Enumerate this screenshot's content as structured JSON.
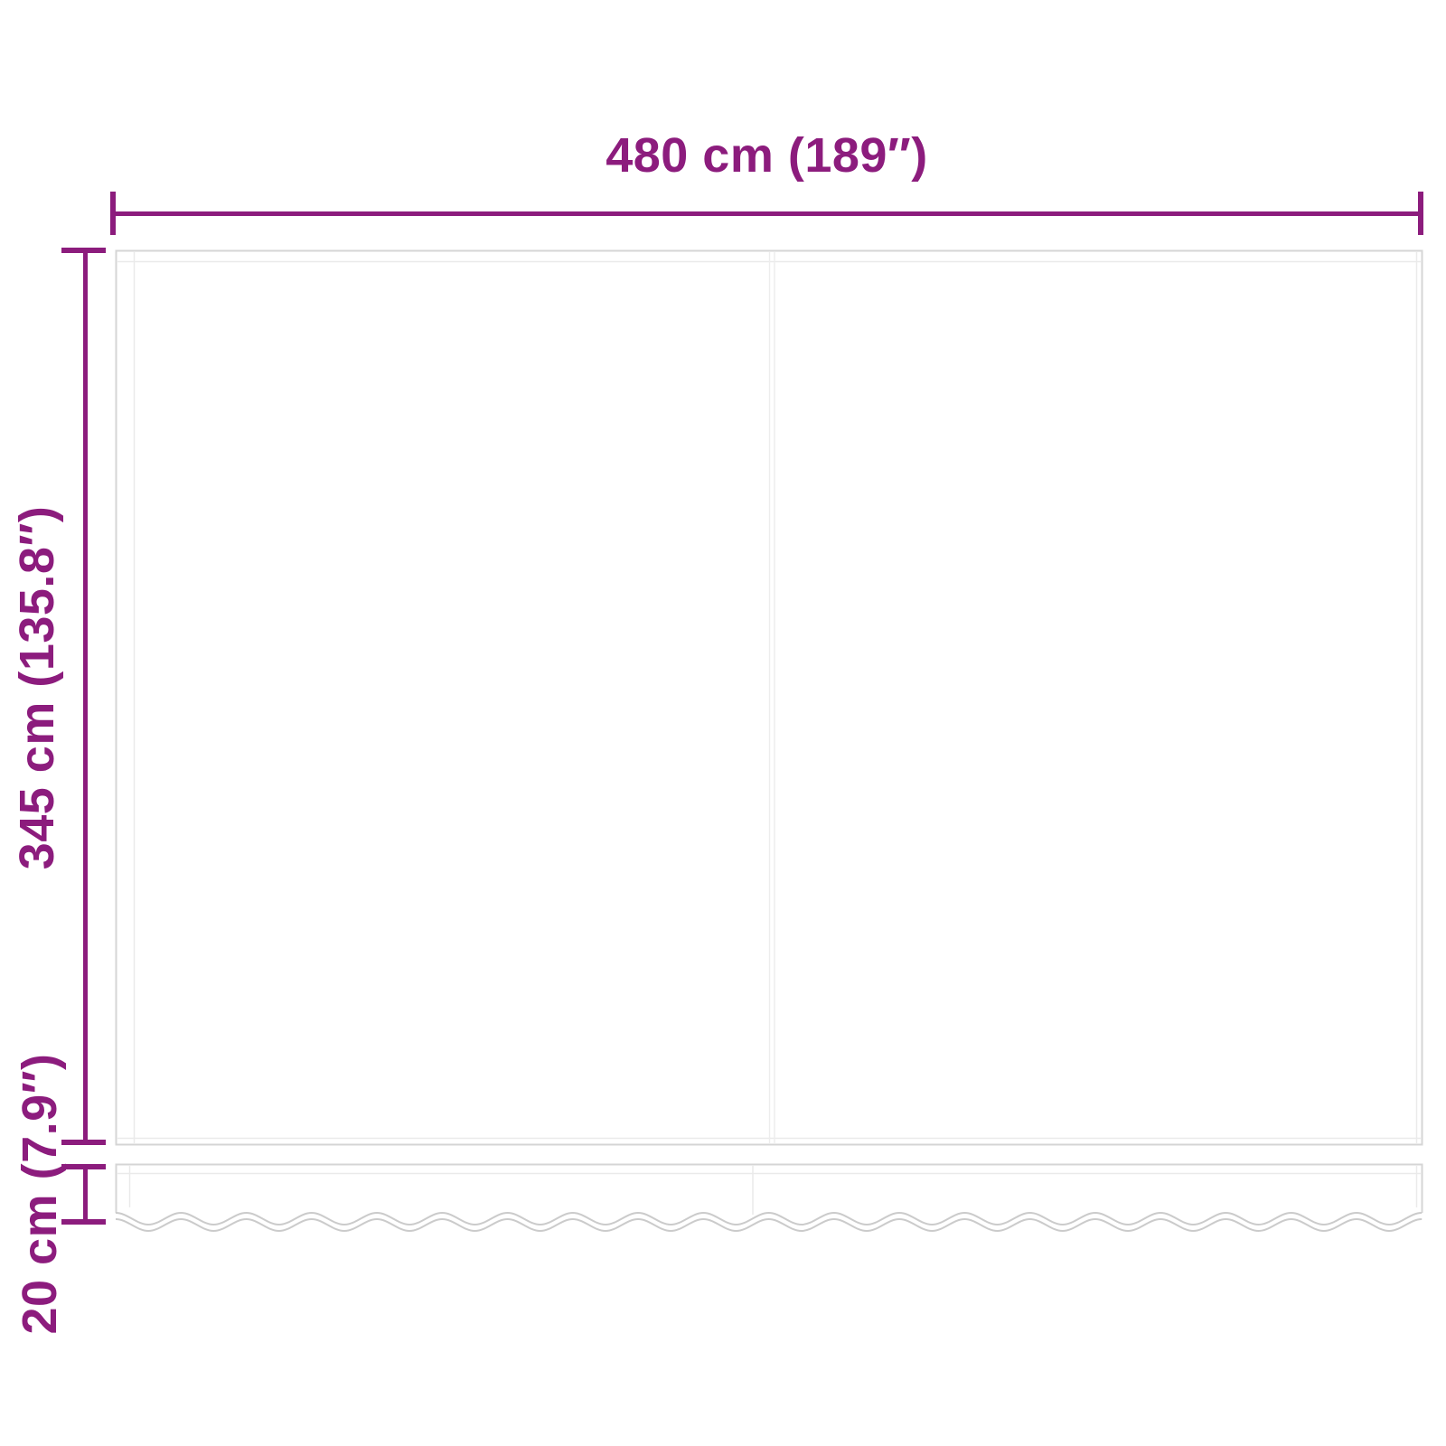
{
  "diagram": {
    "background": "#ffffff",
    "dimensions": {
      "width": {
        "label": "480 cm (189″)",
        "cm": 480,
        "inches": 189
      },
      "height": {
        "label": "345 cm (135.8″)",
        "cm": 345,
        "inches": 135.8
      },
      "valance": {
        "label": "20 cm (7.9″)",
        "cm": 20,
        "inches": 7.9
      }
    }
  },
  "colors": {
    "background": "#ffffff",
    "dimension": "#8C1C7D",
    "fabric_outline": "#D5D5D5",
    "fabric_stitch": "#EAEAEA",
    "fabric_seam": "#EDEDED",
    "wave_outline": "#CBCBCB"
  }
}
